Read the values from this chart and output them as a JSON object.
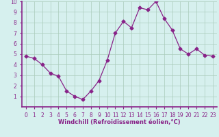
{
  "x": [
    0,
    1,
    2,
    3,
    4,
    5,
    6,
    7,
    8,
    9,
    10,
    11,
    12,
    13,
    14,
    15,
    16,
    17,
    18,
    19,
    20,
    21,
    22,
    23
  ],
  "y": [
    4.8,
    4.6,
    4.0,
    3.2,
    2.9,
    1.5,
    1.0,
    0.7,
    1.5,
    2.5,
    4.4,
    7.0,
    8.1,
    7.5,
    9.4,
    9.2,
    10.0,
    8.4,
    7.3,
    5.5,
    5.0,
    5.5,
    4.9,
    4.8
  ],
  "line_color": "#882288",
  "marker": "D",
  "marker_size": 2.5,
  "xlabel": "Windchill (Refroidissement éolien,°C)",
  "xlim": [
    -0.5,
    23.5
  ],
  "ylim": [
    0,
    10
  ],
  "xticks": [
    0,
    1,
    2,
    3,
    4,
    5,
    6,
    7,
    8,
    9,
    10,
    11,
    12,
    13,
    14,
    15,
    16,
    17,
    18,
    19,
    20,
    21,
    22,
    23
  ],
  "yticks": [
    1,
    2,
    3,
    4,
    5,
    6,
    7,
    8,
    9,
    10
  ],
  "bg_color": "#d6f0ee",
  "grid_color": "#aaccbb",
  "label_color": "#882288",
  "tick_color": "#882288",
  "spine_color": "#882288",
  "tick_fontsize": 5.5,
  "xlabel_fontsize": 6.0
}
